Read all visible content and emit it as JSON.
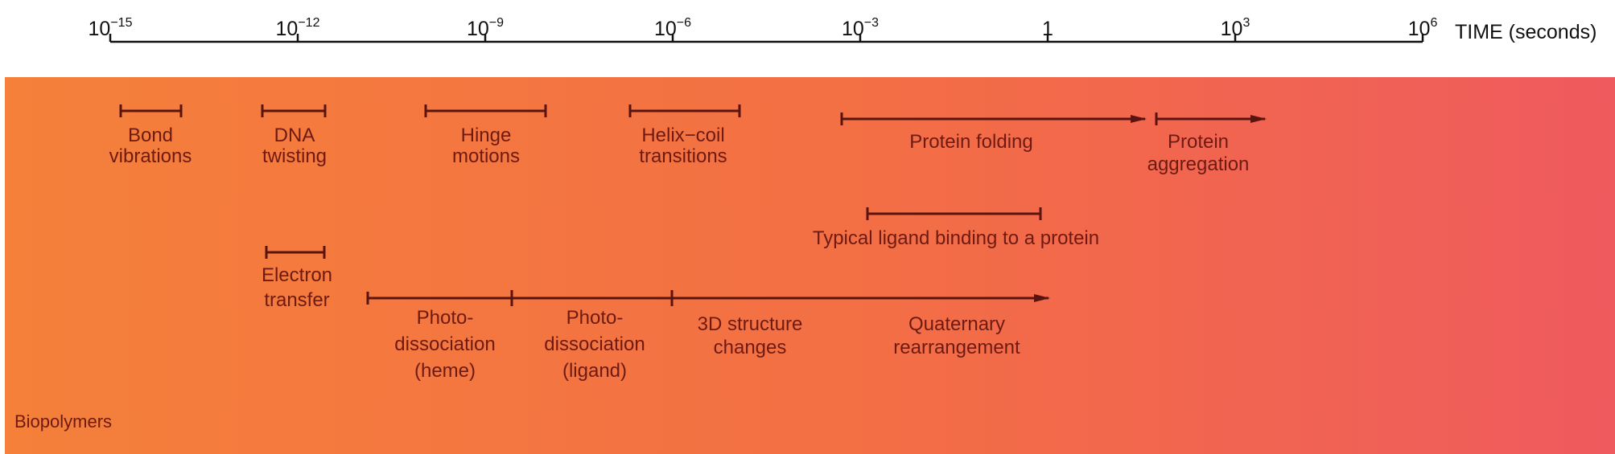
{
  "axis": {
    "ticks": [
      {
        "base": "10",
        "exponent": "−15"
      },
      {
        "base": "10",
        "exponent": "−12"
      },
      {
        "base": "10",
        "exponent": "−9"
      },
      {
        "base": "10",
        "exponent": "−6"
      },
      {
        "base": "10",
        "exponent": "−3"
      },
      {
        "base": "1"
      },
      {
        "base": "10",
        "exponent": "3"
      },
      {
        "base": "10",
        "exponent": "6"
      }
    ],
    "label": "TIME (seconds)"
  },
  "processes": [
    {
      "lines": [
        "Bond",
        "vibrations"
      ]
    },
    {
      "lines": [
        "DNA",
        "twisting"
      ]
    },
    {
      "lines": [
        "Hinge",
        "motions"
      ]
    },
    {
      "lines": [
        "Helix−coil",
        "transitions"
      ]
    },
    {
      "lines": [
        "Protein folding"
      ]
    },
    {
      "lines": [
        "Protein",
        "aggregation"
      ]
    },
    {
      "lines": [
        "Typical ligand binding to a protein"
      ]
    },
    {
      "lines": [
        "Electron",
        "transfer"
      ]
    },
    {
      "lines": [
        "Photo-",
        "dissociation",
        "(heme)"
      ]
    },
    {
      "lines": [
        "Photo-",
        "dissociation",
        "(ligand)"
      ]
    },
    {
      "lines": [
        "3D structure",
        "changes"
      ]
    },
    {
      "lines": [
        "Quaternary",
        "rearrangement"
      ]
    }
  ],
  "panel": {
    "label": "Biopolymers"
  }
}
